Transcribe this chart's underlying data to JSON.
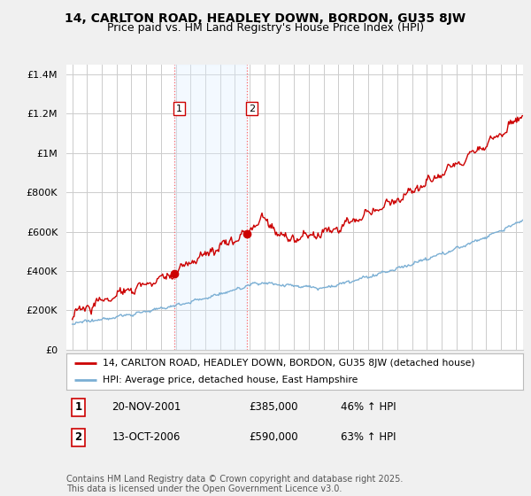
{
  "title": "14, CARLTON ROAD, HEADLEY DOWN, BORDON, GU35 8JW",
  "subtitle": "Price paid vs. HM Land Registry's House Price Index (HPI)",
  "ytick_values": [
    0,
    200000,
    400000,
    600000,
    800000,
    1000000,
    1200000,
    1400000
  ],
  "ylim": [
    0,
    1450000
  ],
  "xlim_start": 1994.6,
  "xlim_end": 2025.5,
  "sale1_date": 2001.89,
  "sale1_price": 385000,
  "sale2_date": 2006.79,
  "sale2_price": 590000,
  "property_color": "#cc0000",
  "hpi_color": "#7bafd4",
  "background_color": "#f0f0f0",
  "plot_bg_color": "#ffffff",
  "grid_color": "#cccccc",
  "vspan_color": "#ddeeff",
  "vline_color": "#ff6666",
  "legend_line1": "14, CARLTON ROAD, HEADLEY DOWN, BORDON, GU35 8JW (detached house)",
  "legend_line2": "HPI: Average price, detached house, East Hampshire",
  "footnote": "Contains HM Land Registry data © Crown copyright and database right 2025.\nThis data is licensed under the Open Government Licence v3.0.",
  "vline1_x": 2001.89,
  "vline2_x": 2006.79,
  "title_fontsize": 10,
  "subtitle_fontsize": 9,
  "tick_fontsize": 8,
  "footnote_fontsize": 7
}
